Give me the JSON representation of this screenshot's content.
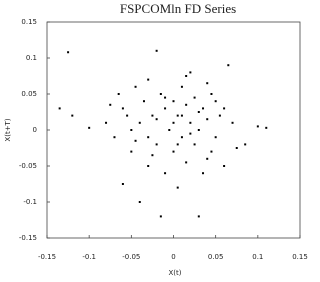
{
  "chart_data": {
    "type": "scatter",
    "title": "FSPCOMln FD Series",
    "x_label": "X(t)",
    "y_label": "X(t+T)",
    "series": [
      {
        "color": "#000000",
        "x": [
          -0.125,
          -0.135,
          -0.12,
          -0.1,
          -0.08,
          -0.075,
          -0.07,
          -0.065,
          -0.06,
          -0.055,
          -0.05,
          -0.045,
          -0.04,
          -0.04,
          -0.035,
          -0.03,
          -0.03,
          -0.025,
          -0.02,
          -0.02,
          -0.015,
          -0.015,
          -0.01,
          -0.01,
          -0.005,
          0.0,
          0.0,
          0.005,
          0.005,
          0.01,
          0.01,
          0.015,
          0.015,
          0.02,
          0.02,
          0.025,
          0.025,
          0.03,
          0.03,
          0.035,
          0.035,
          0.04,
          0.04,
          0.045,
          0.05,
          0.05,
          0.055,
          0.06,
          0.065,
          0.07,
          0.075,
          0.085,
          0.1,
          0.11,
          -0.05,
          -0.02,
          0.0,
          0.01,
          0.02,
          0.03,
          -0.03,
          -0.01,
          0.045,
          -0.06,
          0.06,
          0.005,
          -0.025,
          0.015,
          -0.045,
          0.04
        ],
        "values": [
          0.108,
          0.03,
          0.02,
          0.003,
          0.01,
          0.035,
          -0.01,
          0.05,
          -0.075,
          0.02,
          -0.03,
          0.06,
          -0.1,
          0.01,
          0.04,
          -0.05,
          0.07,
          0.02,
          0.11,
          -0.02,
          -0.12,
          0.05,
          0.03,
          -0.06,
          0.0,
          0.04,
          -0.03,
          0.02,
          -0.08,
          0.06,
          -0.01,
          0.035,
          -0.045,
          0.01,
          0.08,
          -0.02,
          0.045,
          -0.12,
          0.0,
          0.03,
          -0.06,
          0.015,
          0.065,
          -0.03,
          0.04,
          -0.01,
          0.02,
          -0.05,
          0.09,
          0.01,
          -0.025,
          -0.02,
          0.005,
          0.003,
          0.0,
          0.015,
          0.01,
          0.02,
          -0.005,
          0.025,
          -0.01,
          0.045,
          0.05,
          0.03,
          0.03,
          -0.02,
          -0.035,
          0.075,
          -0.015,
          -0.04
        ]
      }
    ],
    "xlim": [
      -0.15,
      0.15
    ],
    "xticks": [
      -0.15,
      -0.1,
      -0.05,
      0,
      0.05,
      0.1,
      0.15
    ],
    "ylim": [
      -0.15,
      0.15
    ],
    "yticks": [
      -0.15,
      -0.1,
      -0.05,
      0,
      0.05,
      0.1,
      0.15
    ]
  }
}
